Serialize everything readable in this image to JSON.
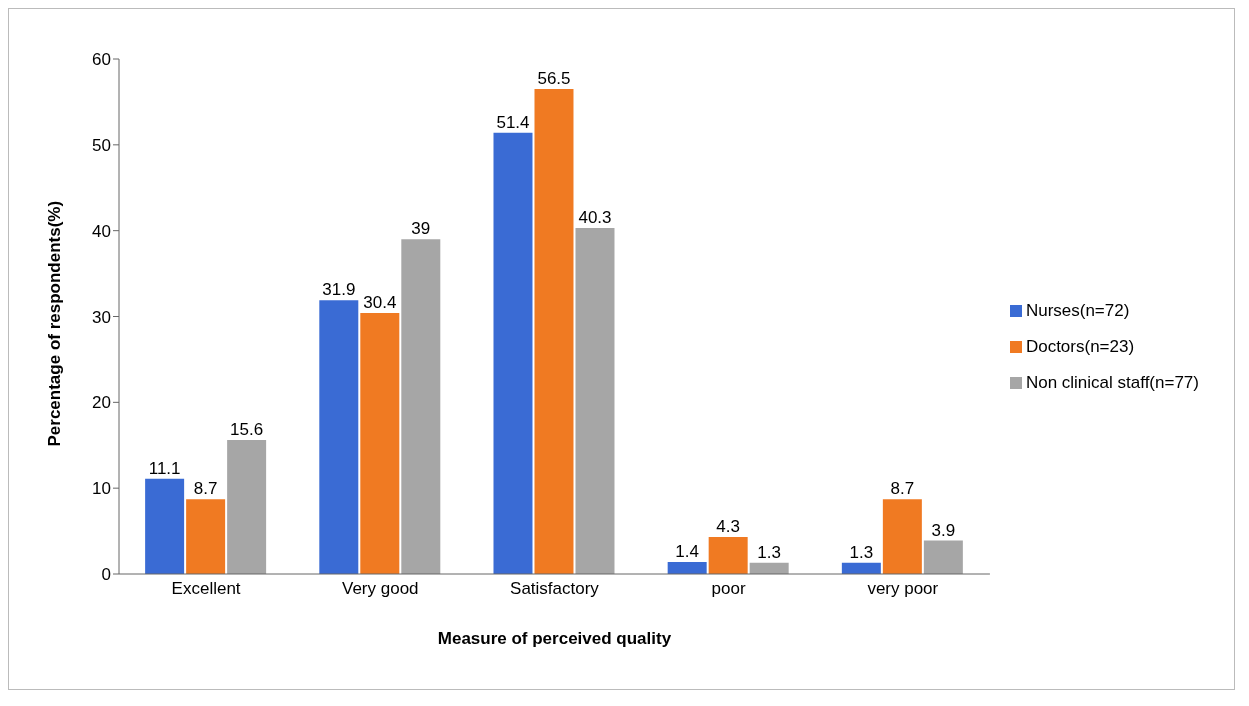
{
  "chart_data": {
    "type": "bar",
    "xlabel": "Measure of perceived  quality",
    "ylabel": "Percentage of respondents(%)",
    "categories": [
      "Excellent",
      "Very good",
      "Satisfactory",
      "poor",
      "very poor"
    ],
    "series": [
      {
        "name": "Nurses(n=72)",
        "color": "#3a6bd4",
        "values": [
          11.1,
          31.9,
          51.4,
          1.4,
          1.3
        ]
      },
      {
        "name": "Doctors(n=23)",
        "color": "#f07a22",
        "values": [
          8.7,
          30.4,
          56.5,
          4.3,
          8.7
        ]
      },
      {
        "name": "Non clinical staff(n=77)",
        "color": "#a6a6a6",
        "values": [
          15.6,
          39,
          40.3,
          1.3,
          3.9
        ]
      }
    ],
    "ylim": [
      0,
      60
    ],
    "yticks": [
      0,
      10,
      20,
      30,
      40,
      50,
      60
    ],
    "legend": "right",
    "data_labels": true
  }
}
